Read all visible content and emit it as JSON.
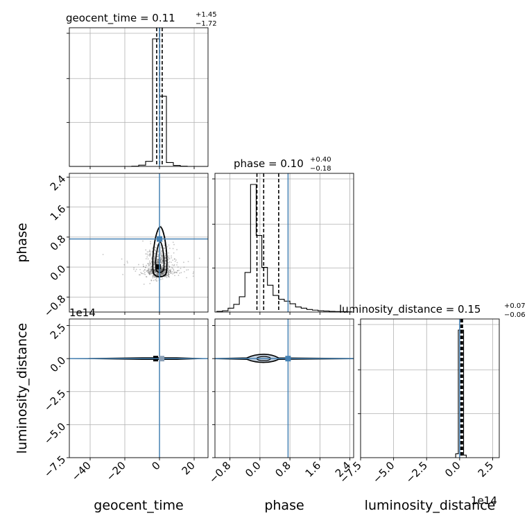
{
  "chart_data": {
    "type": "corner",
    "parameters": [
      "geocent_time",
      "phase",
      "luminosity_distance"
    ],
    "titles": [
      {
        "param": "geocent_time",
        "base": "geocent_time = 0.11",
        "plus": "+1.45",
        "minus": "−1.72",
        "median": 0.11,
        "err_plus": 1.45,
        "err_minus": 1.72
      },
      {
        "param": "phase",
        "base": "phase = 0.10",
        "plus": "+0.40",
        "minus": "−0.18",
        "median": 0.1,
        "err_plus": 0.4,
        "err_minus": 0.18
      },
      {
        "param": "luminosity_distance",
        "base": "luminosity_distance = 0.15",
        "plus": "+0.07",
        "minus": "−0.06",
        "median": 0.15,
        "err_plus": 0.07,
        "err_minus": 0.06
      }
    ],
    "axis_labels": {
      "x": [
        "geocent_time",
        "phase",
        "luminosity_distance"
      ],
      "y": [
        "phase",
        "luminosity_distance"
      ]
    },
    "ranges": {
      "geocent_time": [
        -52,
        28
      ],
      "phase": [
        -1.2,
        2.5
      ],
      "luminosity_distance": [
        -750000000000000.0,
        300000000000000.0
      ]
    },
    "ticks": {
      "geocent_time": {
        "values": [
          -40,
          -20,
          0,
          20
        ],
        "labels": [
          "−40",
          "−20",
          "0",
          "20"
        ]
      },
      "phase": {
        "values": [
          -0.8,
          0.0,
          0.8,
          1.6,
          2.4
        ],
        "labels": [
          "−0.8",
          "0.0",
          "0.8",
          "1.6",
          "2.4"
        ]
      },
      "luminosity_distance": {
        "values": [
          -750000000000000.0,
          -500000000000000.0,
          -250000000000000.0,
          0.0,
          250000000000000.0
        ],
        "labels": [
          "−7.5",
          "−5.0",
          "−2.5",
          "0.0",
          "2.5"
        ]
      }
    },
    "offset_text": "1e14",
    "injection": {
      "geocent_time": 0.0,
      "phase": 0.75,
      "luminosity_distance": 0.0
    },
    "quantiles": {
      "geocent_time": [
        -1.61,
        0.11,
        1.56
      ],
      "phase": [
        -0.08,
        0.1,
        0.5
      ],
      "luminosity_distance": [
        9000000000000.0,
        15000000000000.0,
        22000000000000.0
      ]
    },
    "histograms": {
      "geocent_time": {
        "bin_edges": [
          -52,
          -48,
          -44,
          -40,
          -36,
          -32,
          -28,
          -24,
          -20,
          -16,
          -12,
          -8,
          -4,
          0,
          4,
          8,
          12,
          16,
          20,
          24,
          28
        ],
        "density": [
          0,
          0,
          0,
          0,
          0,
          0,
          0,
          0,
          0,
          0.002,
          0.01,
          0.04,
          1.0,
          0.55,
          0.03,
          0.008,
          0.002,
          0,
          0,
          0
        ]
      },
      "phase": {
        "bin_edges": [
          -1.15,
          -1.0,
          -0.85,
          -0.7,
          -0.55,
          -0.4,
          -0.25,
          -0.1,
          0.05,
          0.2,
          0.35,
          0.5,
          0.65,
          0.8,
          0.95,
          1.1,
          1.25,
          1.4,
          1.55,
          1.7,
          1.85,
          2.0,
          2.15,
          2.3,
          2.45
        ],
        "density": [
          0.005,
          0.01,
          0.03,
          0.06,
          0.12,
          0.31,
          1.0,
          0.6,
          0.35,
          0.21,
          0.13,
          0.1,
          0.085,
          0.065,
          0.04,
          0.03,
          0.02,
          0.015,
          0.01,
          0.008,
          0.005,
          0.004,
          0.003,
          0.002
        ]
      },
      "luminosity_distance": {
        "bin_edges": [
          -30000000000000.0,
          -10000000000000.0,
          10000000000000.0,
          30000000000000.0,
          50000000000000.0
        ],
        "density": [
          0.03,
          1.0,
          1.0,
          0.02
        ]
      }
    },
    "colors": {
      "injection": "#4682b4",
      "hist": "#000000",
      "grid": "#b0b0b0"
    }
  }
}
